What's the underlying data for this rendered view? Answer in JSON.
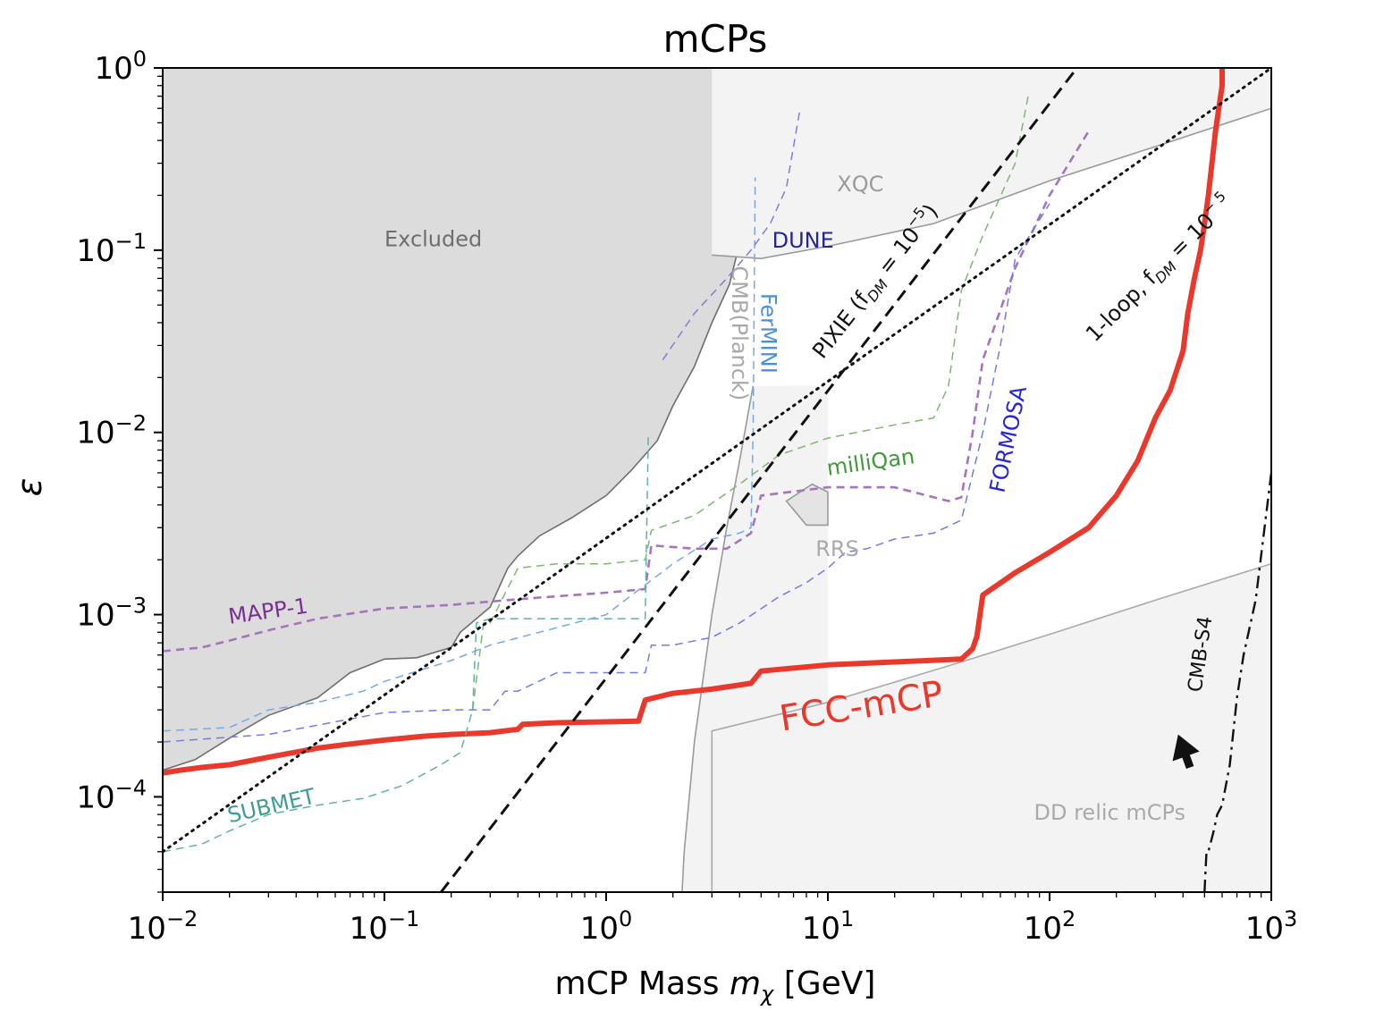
{
  "chart_data": {
    "type": "line",
    "title": "mCPs",
    "xlabel_main": "mCP Mass ",
    "xlabel_symbol": "m",
    "xlabel_sub": "χ",
    "xlabel_unit": " [GeV]",
    "ylabel": "ε",
    "xscale": "log",
    "yscale": "log",
    "xlim": [
      0.01,
      1000
    ],
    "ylim": [
      3e-05,
      1
    ],
    "x_ticks": [
      {
        "value": 0.01,
        "base": "10",
        "exp": "−2"
      },
      {
        "value": 0.1,
        "base": "10",
        "exp": "−1"
      },
      {
        "value": 1,
        "base": "10",
        "exp": "0"
      },
      {
        "value": 10,
        "base": "10",
        "exp": "1"
      },
      {
        "value": 100,
        "base": "10",
        "exp": "2"
      },
      {
        "value": 1000,
        "base": "10",
        "exp": "3"
      }
    ],
    "y_ticks": [
      {
        "value": 0.0001,
        "base": "10",
        "exp": "−4"
      },
      {
        "value": 0.001,
        "base": "10",
        "exp": "−3"
      },
      {
        "value": 0.01,
        "base": "10",
        "exp": "−2"
      },
      {
        "value": 0.1,
        "base": "10",
        "exp": "−1"
      },
      {
        "value": 1,
        "base": "10",
        "exp": "0"
      }
    ],
    "regions": [
      {
        "name": "Excluded",
        "fill": "#dcdcdc",
        "stroke": "#6e6e6e",
        "x": [
          0.01,
          0.014,
          0.02,
          0.03,
          0.05,
          0.07,
          0.1,
          0.14,
          0.2,
          0.22,
          0.3,
          0.36,
          0.4,
          0.5,
          0.7,
          1.0,
          1.3,
          1.7,
          2.0,
          2.5,
          3.0,
          3.6,
          4.2,
          5.0,
          7.0,
          10,
          20,
          35,
          43,
          44,
          47,
          55,
          70,
          100,
          200,
          400,
          600,
          800,
          1000,
          1000,
          0.01
        ],
        "y": [
          0.00014,
          0.00016,
          0.00021,
          0.00028,
          0.00035,
          0.00048,
          0.00057,
          0.00058,
          0.00066,
          0.0008,
          0.0011,
          0.0018,
          0.0021,
          0.0027,
          0.0034,
          0.0045,
          0.0062,
          0.009,
          0.014,
          0.023,
          0.04,
          0.065,
          0.14,
          0.25,
          0.27,
          0.28,
          0.28,
          0.28,
          0.29,
          0.36,
          0.46,
          0.5,
          0.52,
          0.53,
          0.53,
          0.53,
          0.53,
          0.58,
          0.6,
          1.0,
          1.0
        ]
      },
      {
        "name": "XQC",
        "fill": "#f3f3f3",
        "stroke": "#9a9a9a",
        "x": [
          3.0,
          5.0,
          10,
          30,
          100,
          300,
          1000
        ],
        "y": [
          0.094,
          0.09,
          0.105,
          0.14,
          0.24,
          0.37,
          0.6
        ]
      },
      {
        "name": "CMB(Planck)",
        "fill": "#f3f3f3",
        "stroke": "#9a9a9a",
        "x": [
          2.2,
          2.25,
          2.5,
          3.0,
          3.5,
          4.0,
          4.6
        ],
        "y": [
          3e-05,
          5e-05,
          0.0002,
          0.001,
          0.003,
          0.007,
          0.018
        ]
      },
      {
        "name": "RRS",
        "fill": "#e4e4e4",
        "stroke": "#9a9a9a",
        "x": [
          6.5,
          8.5,
          10,
          10,
          8,
          6.5
        ],
        "y": [
          0.0042,
          0.0052,
          0.0047,
          0.0031,
          0.0031,
          0.0042
        ]
      },
      {
        "name": "DD relic mCPs",
        "fill": "#f3f3f3",
        "stroke": "#aaaaaa",
        "x": [
          3.0,
          10,
          40,
          100,
          300,
          1000,
          1000,
          3.0
        ],
        "y": [
          0.00023,
          0.00033,
          0.00055,
          0.00078,
          0.0012,
          0.0019,
          3e-05,
          3e-05
        ]
      }
    ],
    "series": [
      {
        "name": "FCC-mCP",
        "color": "#e8392c",
        "style": "solid",
        "width": 6,
        "x": [
          0.01,
          0.012,
          0.015,
          0.02,
          0.03,
          0.05,
          0.07,
          0.1,
          0.15,
          0.2,
          0.3,
          0.4,
          0.42,
          0.6,
          1.0,
          1.4,
          1.5,
          2.0,
          3.0,
          4.5,
          5.0,
          10,
          20,
          40,
          45,
          47,
          50,
          70,
          100,
          150,
          200,
          250,
          300,
          350,
          400,
          420,
          450,
          480,
          500,
          520,
          540,
          560,
          580,
          600,
          600
        ],
        "y": [
          0.000135,
          0.00014,
          0.000145,
          0.00015,
          0.000165,
          0.000185,
          0.000195,
          0.000205,
          0.000215,
          0.00022,
          0.000225,
          0.000235,
          0.00025,
          0.000255,
          0.000258,
          0.00026,
          0.00034,
          0.00037,
          0.00039,
          0.00042,
          0.00049,
          0.00053,
          0.00055,
          0.00057,
          0.00065,
          0.00076,
          0.00128,
          0.0017,
          0.0022,
          0.003,
          0.0045,
          0.007,
          0.012,
          0.017,
          0.028,
          0.045,
          0.07,
          0.1,
          0.14,
          0.2,
          0.3,
          0.45,
          0.6,
          0.8,
          1.0
        ]
      },
      {
        "name": "MAPP-1",
        "color": "#a673bd",
        "style": "dashed",
        "width": 2.6,
        "x": [
          0.01,
          0.015,
          0.02,
          0.03,
          0.05,
          0.1,
          0.2,
          0.3,
          0.5,
          1.0,
          1.5,
          1.6,
          2.5,
          3.5,
          4.5,
          5,
          10,
          20,
          35,
          40,
          45,
          50,
          70,
          100,
          150
        ],
        "y": [
          0.00063,
          0.00066,
          0.00072,
          0.00082,
          0.00095,
          0.00108,
          0.00113,
          0.00118,
          0.00124,
          0.00132,
          0.00138,
          0.0024,
          0.0023,
          0.0023,
          0.0028,
          0.0045,
          0.005,
          0.005,
          0.0042,
          0.0044,
          0.01,
          0.025,
          0.08,
          0.2,
          0.45
        ]
      },
      {
        "name": "milliQan",
        "color": "#7ab96e",
        "style": "dashed",
        "width": 1.5,
        "x": [
          0.25,
          0.28,
          0.3,
          0.4,
          0.6,
          1.0,
          1.5,
          1.6,
          2.5,
          4.0,
          6.0,
          10,
          20,
          30,
          35,
          40,
          50,
          70,
          80
        ],
        "y": [
          0.0003,
          0.0009,
          0.0009,
          0.0018,
          0.0019,
          0.0019,
          0.002,
          0.0029,
          0.0035,
          0.0052,
          0.0075,
          0.0093,
          0.011,
          0.012,
          0.018,
          0.06,
          0.12,
          0.3,
          0.7
        ]
      },
      {
        "name": "SUBMET",
        "color": "#5fb1ac",
        "style": "dashed",
        "width": 1.5,
        "x": [
          0.01,
          0.015,
          0.02,
          0.03,
          0.05,
          0.08,
          0.12,
          0.18,
          0.22,
          0.25,
          0.26,
          0.3,
          0.5,
          1.0,
          1.5,
          1.55
        ],
        "y": [
          5e-05,
          5.5e-05,
          6.5e-05,
          8e-05,
          9e-05,
          9.8e-05,
          0.000115,
          0.00015,
          0.000175,
          0.0003,
          0.0009,
          0.00095,
          0.00095,
          0.00095,
          0.00095,
          0.01
        ]
      },
      {
        "name": "FerMINI",
        "color": "#74a9e8",
        "style": "dashed",
        "width": 1.5,
        "x": [
          0.01,
          0.02,
          0.03,
          0.05,
          0.08,
          0.1,
          0.2,
          0.3,
          0.5,
          1.0,
          2.0,
          3.0,
          4.0,
          4.5,
          4.6,
          4.7
        ],
        "y": [
          0.00023,
          0.00024,
          0.0003,
          0.00033,
          0.00038,
          0.00043,
          0.00056,
          0.00068,
          0.0008,
          0.001,
          0.0019,
          0.0026,
          0.0028,
          0.003,
          0.01,
          0.25
        ]
      },
      {
        "name": "FORMOSA",
        "color": "#7579e8",
        "style": "dashed",
        "width": 1.5,
        "x": [
          0.01,
          0.03,
          0.1,
          0.2,
          0.3,
          0.35,
          0.4,
          0.6,
          0.8,
          1.0,
          1.5,
          1.6,
          2.0,
          3.0,
          4.0,
          6.0,
          8.0,
          10,
          12,
          15,
          20,
          30,
          40,
          50,
          60,
          70,
          100
        ],
        "y": [
          0.0002,
          0.00022,
          0.00029,
          0.0003,
          0.0003,
          0.00038,
          0.00038,
          0.00048,
          0.00048,
          0.00048,
          0.00048,
          0.00068,
          0.00068,
          0.00075,
          0.0009,
          0.00125,
          0.0015,
          0.0018,
          0.0022,
          0.0023,
          0.0026,
          0.0028,
          0.0033,
          0.01,
          0.03,
          0.09,
          0.18
        ]
      },
      {
        "name": "DUNE",
        "color": "#7d7fd6",
        "style": "dashed",
        "width": 1.5,
        "x": [
          1.8,
          2.5,
          3.5,
          4.5,
          5.5,
          6.5,
          7.5
        ],
        "y": [
          0.025,
          0.045,
          0.07,
          0.1,
          0.14,
          0.22,
          0.6
        ]
      },
      {
        "name": "PIXIE",
        "color": "#111111",
        "style": "longdash",
        "width": 3,
        "x": [
          0.18,
          133
        ],
        "y": [
          3e-05,
          1.0
        ]
      },
      {
        "name": "1-loop",
        "color": "#111111",
        "style": "dotted",
        "width": 3,
        "x": [
          0.01,
          1000
        ],
        "y": [
          5e-05,
          1.0
        ]
      },
      {
        "name": "CMB-S4",
        "color": "#111111",
        "style": "dashdot",
        "width": 2.4,
        "x": [
          500,
          510,
          520,
          550,
          570,
          600,
          650,
          700,
          750,
          850,
          1000
        ],
        "y": [
          3e-05,
          5e-05,
          5e-05,
          6.5e-05,
          8e-05,
          9e-05,
          0.00015,
          0.00035,
          0.0006,
          0.0012,
          0.006
        ]
      }
    ],
    "annotations": [
      {
        "text": "Excluded",
        "color": "#6e6e6e",
        "x": 0.1,
        "y": 0.105,
        "angle": 0,
        "size": 24,
        "anchor": "start"
      },
      {
        "text": "XQC",
        "color": "#9a9a9a",
        "x": 11,
        "y": 0.21,
        "angle": 0,
        "size": 24,
        "anchor": "start"
      },
      {
        "text": "DUNE",
        "color": "#252690",
        "x": 5.6,
        "y": 0.103,
        "angle": 0,
        "size": 24,
        "anchor": "start"
      },
      {
        "text": "CMB(Planck)",
        "color": "#a8a8a8",
        "x": 3.7,
        "y": 0.035,
        "angle": 90,
        "size": 24,
        "anchor": "middle"
      },
      {
        "text": "FerMINI",
        "color": "#4e8fd9",
        "x": 5.0,
        "y": 0.035,
        "angle": 90,
        "size": 24,
        "anchor": "middle"
      },
      {
        "text": "milliQan",
        "color": "#3f9a37",
        "x": 10,
        "y": 0.0058,
        "angle": -8,
        "size": 24,
        "anchor": "start"
      },
      {
        "text": "FORMOSA",
        "color": "#2626d6",
        "x": 70,
        "y": 0.009,
        "angle": -78,
        "size": 24,
        "anchor": "middle"
      },
      {
        "text": "RRS",
        "color": "#aaaaaa",
        "x": 8.8,
        "y": 0.0021,
        "angle": 0,
        "size": 24,
        "anchor": "start"
      },
      {
        "text": "MAPP-1",
        "color": "#7a2f94",
        "x": 0.02,
        "y": 0.00089,
        "angle": -8,
        "size": 24,
        "anchor": "start"
      },
      {
        "text": "SUBMET",
        "color": "#3e9c96",
        "x": 0.02,
        "y": 7.2e-05,
        "angle": -13,
        "size": 24,
        "anchor": "start"
      },
      {
        "text": "FCC-mCP",
        "color": "#e8392c",
        "x": 6.2,
        "y": 0.00023,
        "angle": -9,
        "size": 40,
        "anchor": "start"
      },
      {
        "text": "DD relic mCPs",
        "color": "#aaaaaa",
        "x": 85,
        "y": 7.5e-05,
        "angle": 0,
        "size": 24,
        "anchor": "start"
      },
      {
        "text": "CMB-S4",
        "color": "#111111",
        "x": 510,
        "y": 0.0006,
        "angle": -82,
        "size": 22,
        "anchor": "middle"
      },
      {
        "text": "PIXIE (f",
        "color": "#111111",
        "x": 9.5,
        "y": 0.025,
        "angle": -52,
        "size": 24,
        "anchor": "start",
        "sub": "DM",
        "rest": " = 10",
        "sup": "−5",
        "end": ")"
      },
      {
        "text": "1-loop, f",
        "color": "#111111",
        "x": 160,
        "y": 0.031,
        "angle": -45,
        "size": 24,
        "anchor": "start",
        "sub": "DM",
        "rest": " = 10",
        "sup": "− 5",
        "end": ""
      }
    ],
    "arrow": {
      "x_from": 430,
      "y_from": 0.000145,
      "x_to": 380,
      "y_to": 0.00022,
      "color": "#111111"
    }
  }
}
